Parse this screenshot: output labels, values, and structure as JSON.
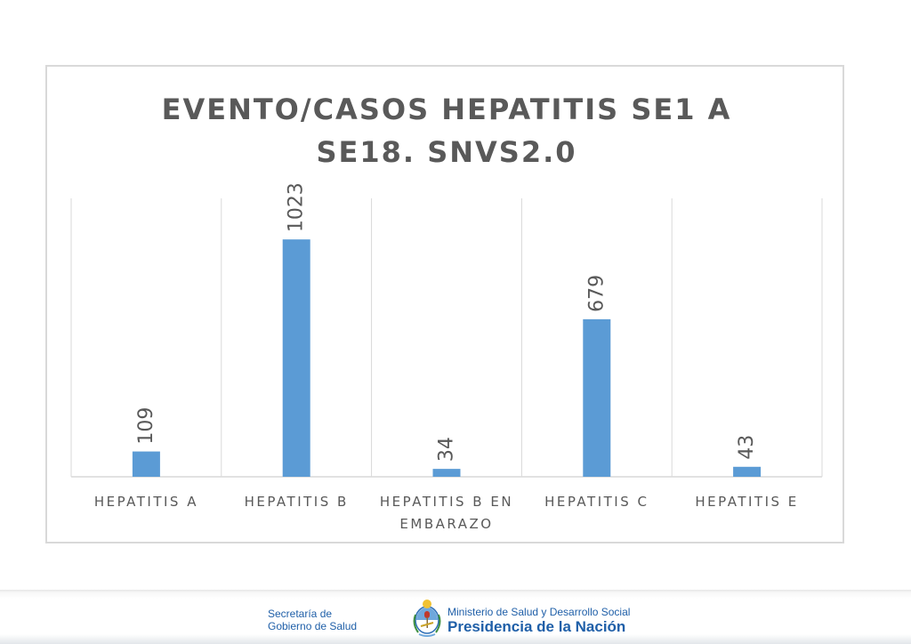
{
  "chart_data": {
    "type": "bar",
    "title_lines": [
      "EVENTO/CASOS HEPATITIS SE1 A",
      "SE18. SNVS2.0"
    ],
    "categories": [
      [
        "HEPATITIS A"
      ],
      [
        "HEPATITIS B"
      ],
      [
        "HEPATITIS B EN",
        "EMBARAZO"
      ],
      [
        "HEPATITIS C"
      ],
      [
        "HEPATITIS E"
      ]
    ],
    "values": [
      109,
      1023,
      34,
      679,
      43
    ],
    "ylim": [
      0,
      1200
    ],
    "grid": "vertical",
    "legend": "none",
    "bar_color": "#5b9bd5"
  },
  "footer": {
    "secretaria_lines": [
      "Secretaría de",
      "Gobierno de Salud"
    ],
    "ministerio": "Ministerio de Salud y Desarrollo Social",
    "presidencia": "Presidencia de la Nación"
  }
}
